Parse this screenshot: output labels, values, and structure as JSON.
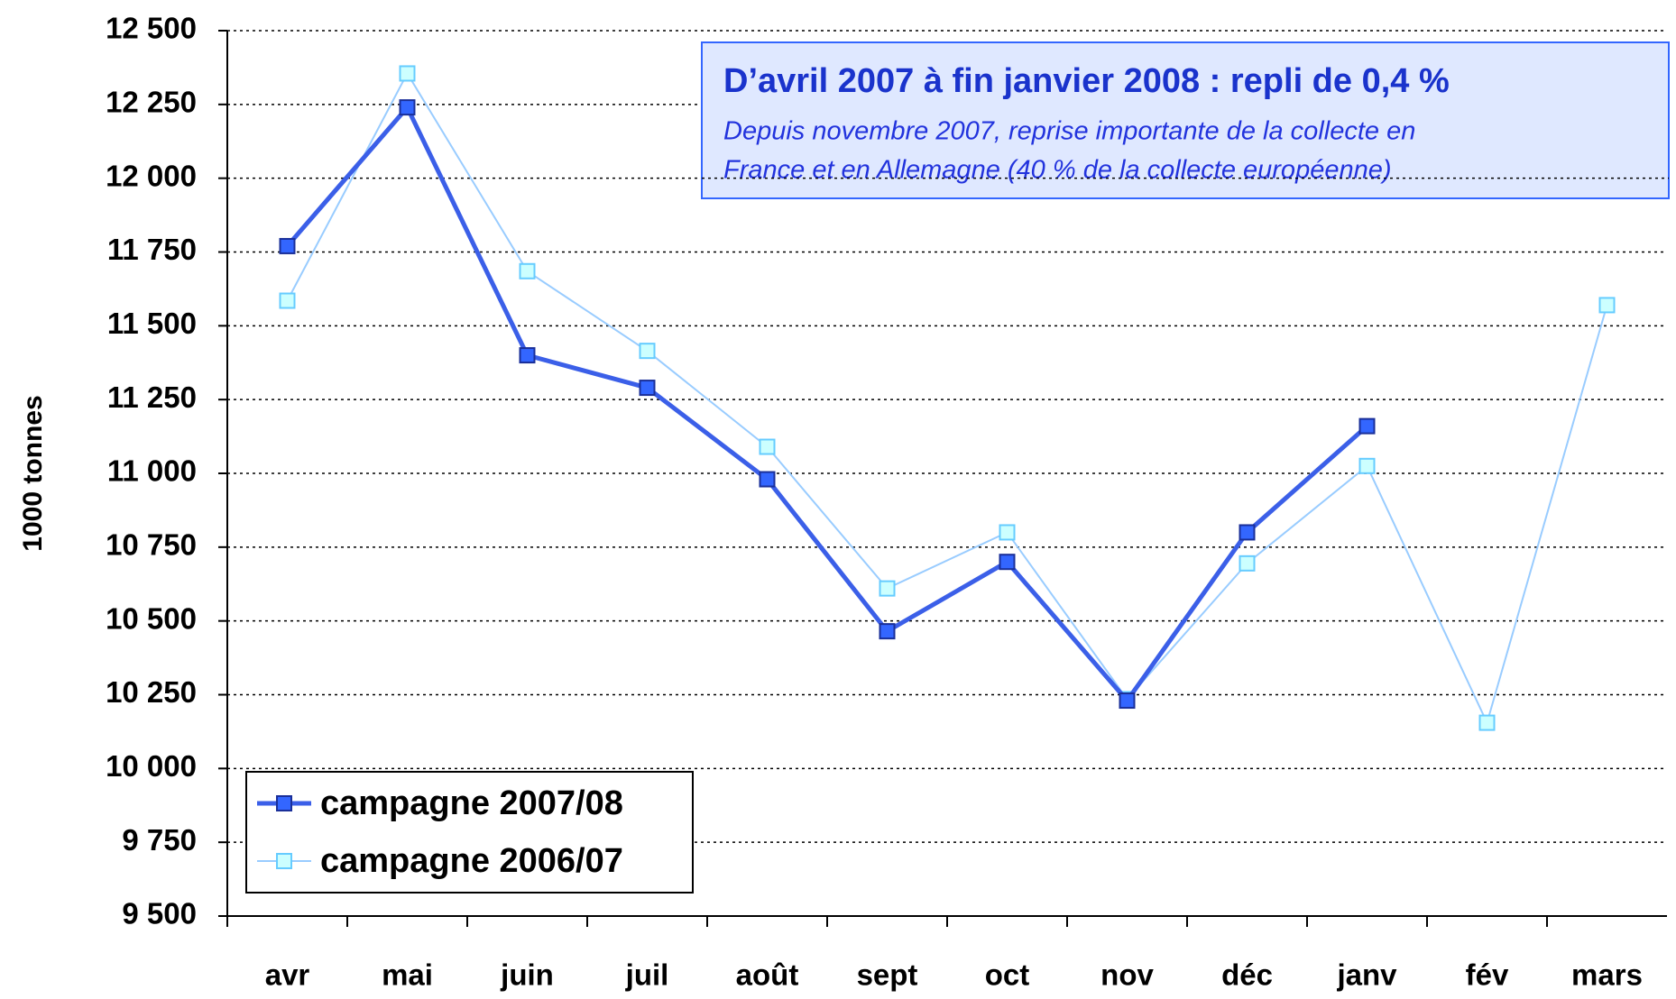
{
  "chart_data": {
    "type": "line",
    "y_axis_label": "1000 tonnes",
    "categories": [
      "avr",
      "mai",
      "juin",
      "juil",
      "août",
      "sept",
      "oct",
      "nov",
      "déc",
      "janv",
      "fév",
      "mars"
    ],
    "series": [
      {
        "name": "campagne 2007/08",
        "color": "#3366ff",
        "values": [
          11770,
          12240,
          11400,
          11290,
          10980,
          10465,
          10700,
          10230,
          10800,
          11160,
          null,
          null
        ]
      },
      {
        "name": "campagne 2006/07",
        "color": "#99ccff",
        "values": [
          11585,
          12355,
          11685,
          11415,
          11090,
          10610,
          10800,
          10235,
          10695,
          11025,
          10155,
          11570
        ]
      }
    ],
    "ylim": [
      9500,
      12500
    ],
    "yticks": [
      {
        "value": 9500,
        "label": "9 500"
      },
      {
        "value": 9750,
        "label": "9 750"
      },
      {
        "value": 10000,
        "label": "10 000"
      },
      {
        "value": 10250,
        "label": "10 250"
      },
      {
        "value": 10500,
        "label": "10 500"
      },
      {
        "value": 10750,
        "label": "10 750"
      },
      {
        "value": 11000,
        "label": "11 000"
      },
      {
        "value": 11250,
        "label": "11 250"
      },
      {
        "value": 11500,
        "label": "11 500"
      },
      {
        "value": 11750,
        "label": "11 750"
      },
      {
        "value": 12000,
        "label": "12 000"
      },
      {
        "value": 12250,
        "label": "12 250"
      },
      {
        "value": 12500,
        "label": "12 500"
      }
    ],
    "grid": true,
    "legend": "lower left",
    "annotation": {
      "title": "D’avril 2007 à fin janvier 2008 : repli  de 0,4 %",
      "text": [
        "Depuis novembre 2007, reprise importante de la collecte en",
        "France et en Allemagne (40 % de la collecte européenne)"
      ]
    }
  }
}
